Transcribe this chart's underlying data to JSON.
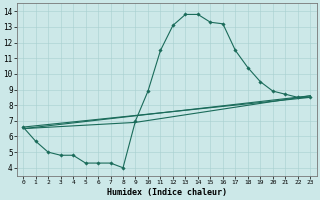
{
  "xlabel": "Humidex (Indice chaleur)",
  "xlim": [
    -0.5,
    23.5
  ],
  "ylim": [
    3.5,
    14.5
  ],
  "xticks": [
    0,
    1,
    2,
    3,
    4,
    5,
    6,
    7,
    8,
    9,
    10,
    11,
    12,
    13,
    14,
    15,
    16,
    17,
    18,
    19,
    20,
    21,
    22,
    23
  ],
  "yticks": [
    4,
    5,
    6,
    7,
    8,
    9,
    10,
    11,
    12,
    13,
    14
  ],
  "bg_color": "#cce8e8",
  "line_color": "#1a6b5a",
  "lines": [
    {
      "x": [
        0,
        1,
        2,
        3,
        4,
        5,
        6,
        7,
        8,
        9,
        10,
        11,
        12,
        13,
        14,
        15,
        16,
        17,
        18,
        19,
        20,
        21,
        22,
        23
      ],
      "y": [
        6.6,
        5.7,
        5.0,
        4.8,
        4.8,
        4.3,
        4.3,
        4.3,
        4.0,
        7.0,
        8.9,
        11.5,
        13.1,
        13.8,
        13.8,
        13.3,
        13.2,
        11.5,
        10.4,
        9.5,
        8.9,
        8.7,
        8.5,
        8.5
      ],
      "marker": true
    },
    {
      "x": [
        0,
        23
      ],
      "y": [
        6.6,
        8.5
      ],
      "marker": false
    },
    {
      "x": [
        0,
        23
      ],
      "y": [
        6.5,
        8.6
      ],
      "marker": false
    },
    {
      "x": [
        0,
        9,
        23
      ],
      "y": [
        6.5,
        6.9,
        8.6
      ],
      "marker": false
    }
  ]
}
